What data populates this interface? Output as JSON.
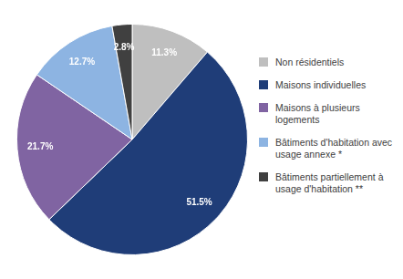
{
  "chart_data": {
    "type": "pie",
    "categories": [
      "Non résidentiels",
      "Maisons individuelles",
      "Maisons à plusieurs logements",
      "Bâtiments d'habitation avec usage annexe *",
      "Bâtiments partiellement à usage d'habitation **"
    ],
    "values": [
      11.3,
      51.5,
      21.7,
      12.7,
      2.8
    ],
    "value_labels": [
      "11.3%",
      "51.5%",
      "21.7%",
      "12.7%",
      "2.8%"
    ],
    "colors": [
      "#bfbfbf",
      "#1f3d78",
      "#8064a2",
      "#8db4e2",
      "#404040"
    ],
    "data_labels": true,
    "legend": "right"
  }
}
